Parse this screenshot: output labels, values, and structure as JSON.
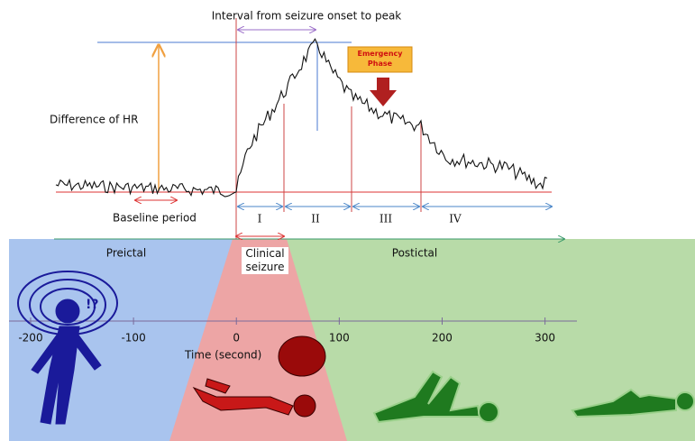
{
  "title": "Interval from seizure onset to peak",
  "hr_label": "Difference of HR",
  "baseline_label": "Baseline period",
  "emergency_label": "Emergency Phase",
  "phase_numerals": [
    "I",
    "II",
    "III",
    "IV"
  ],
  "periods": [
    "Preictal",
    "Clinical seizure",
    "Postictal"
  ],
  "time_axis": {
    "label": "Time (second)",
    "xlim": [
      -221,
      331
    ],
    "ticks": [
      -200,
      -100,
      0,
      100,
      200,
      300
    ]
  }
}
